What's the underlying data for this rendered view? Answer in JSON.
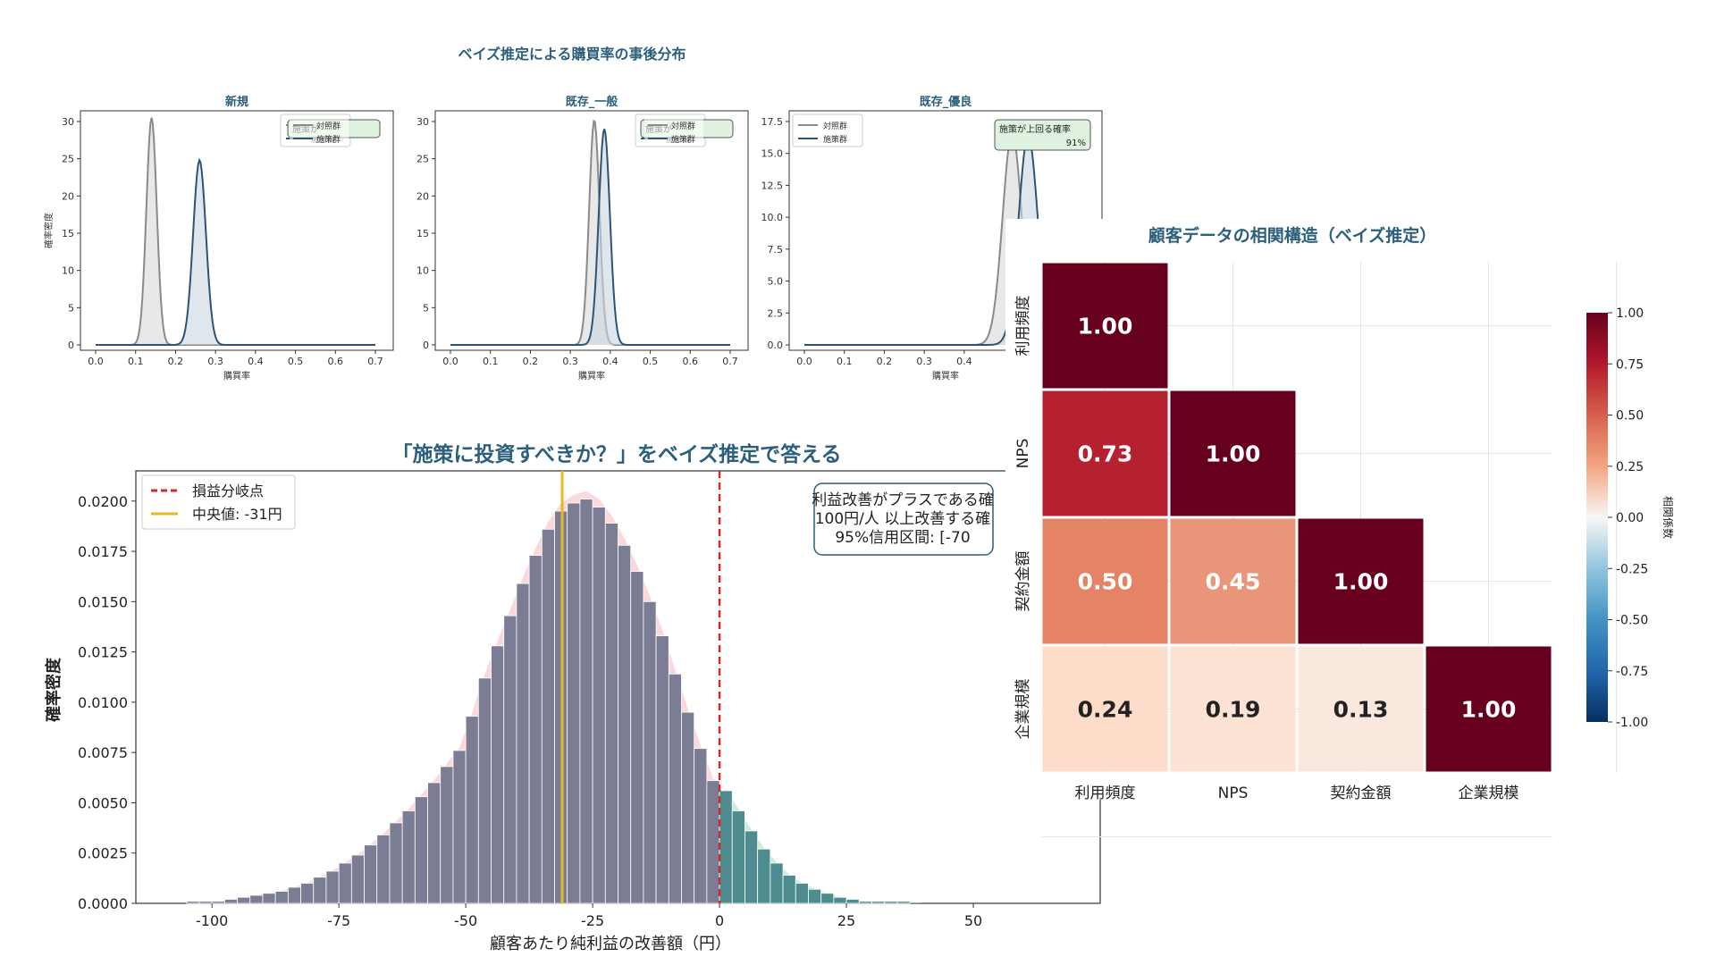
{
  "posterior_figure": {
    "suptitle": "ベイズ推定による購買率の事後分布",
    "panels": [
      {
        "title": "新規",
        "xlabel": "購買率",
        "ylabel": "確率密度",
        "legend": [
          "対照群",
          "施策群"
        ],
        "prob_box": "施策が"
      },
      {
        "title": "既存_一般",
        "xlabel": "購買率",
        "ylabel": "",
        "legend": [
          "対照群",
          "施策群"
        ],
        "prob_box": "施策が"
      },
      {
        "title": "既存_優良",
        "xlabel": "購買率",
        "ylabel": "",
        "legend": [
          "対照群",
          "施策群"
        ],
        "prob_box": "施策が上回る確率\n91%"
      }
    ]
  },
  "histogram_figure": {
    "title": "「施策に投資すべきか？」をベイズ推定で答える",
    "xlabel": "顧客あたり純利益の改善額（円）",
    "ylabel": "確率密度",
    "legend": [
      "損益分岐点",
      "中央値: -31円"
    ],
    "annotation": [
      "利益改善がプラスである確",
      "100円/人 以上改善する確",
      "95%信用区間: [-70"
    ]
  },
  "heatmap_figure": {
    "title": "顧客データの相関構造（ベイズ推定）",
    "colorbar_label": "相関係数",
    "colorbar_ticks": [
      "1.00",
      "0.75",
      "0.50",
      "0.25",
      "0.00",
      "-0.25",
      "-0.50",
      "-0.75",
      "-1.00"
    ]
  },
  "colors": {
    "control": "#8a8a8a",
    "treatment": "#2e5475",
    "title_blue": "#2c5f7c",
    "breakeven": "#d62728",
    "median": "#e8b822",
    "hist_neg": "#7b7d94",
    "hist_pos": "#4f8c90",
    "prob_box_fill": "#dff2df"
  },
  "chart_data": [
    {
      "type": "line",
      "name": "新規",
      "xlim": [
        0,
        0.7
      ],
      "ylim": [
        0,
        30
      ],
      "xticks": [
        "0.0",
        "0.1",
        "0.2",
        "0.3",
        "0.4",
        "0.5",
        "0.6",
        "0.7"
      ],
      "yticks": [
        "0",
        "5",
        "10",
        "15",
        "20",
        "25",
        "30"
      ],
      "series": [
        {
          "name": "対照群",
          "mean": 0.14,
          "sd": 0.013,
          "peak": 30.5
        },
        {
          "name": "施策群",
          "mean": 0.26,
          "sd": 0.016,
          "peak": 24.8
        }
      ]
    },
    {
      "type": "line",
      "name": "既存_一般",
      "xlim": [
        0,
        0.7
      ],
      "ylim": [
        0,
        30
      ],
      "xticks": [
        "0.0",
        "0.1",
        "0.2",
        "0.3",
        "0.4",
        "0.5",
        "0.6",
        "0.7"
      ],
      "yticks": [
        "0",
        "5",
        "10",
        "15",
        "20",
        "25",
        "30"
      ],
      "series": [
        {
          "name": "対照群",
          "mean": 0.36,
          "sd": 0.013,
          "peak": 30.2
        },
        {
          "name": "施策群",
          "mean": 0.385,
          "sd": 0.014,
          "peak": 29.0
        }
      ]
    },
    {
      "type": "line",
      "name": "既存_優良",
      "xlim": [
        0,
        0.7
      ],
      "ylim": [
        0,
        17.5
      ],
      "xticks": [
        "0.0",
        "0.1",
        "0.2",
        "0.3",
        "0.4"
      ],
      "yticks": [
        "0.0",
        "2.5",
        "5.0",
        "7.5",
        "10.0",
        "12.5",
        "15.0",
        "17.5"
      ],
      "series": [
        {
          "name": "対照群",
          "mean": 0.52,
          "sd": 0.024,
          "peak": 16.6
        },
        {
          "name": "施策群",
          "mean": 0.56,
          "sd": 0.024,
          "peak": 16.4
        }
      ]
    },
    {
      "type": "bar",
      "name": "顧客あたり純利益の改善額",
      "xlim": [
        -115,
        75
      ],
      "ylim": [
        0,
        0.0215
      ],
      "xticks": [
        "-100",
        "-75",
        "-50",
        "-25",
        "0",
        "25",
        "50"
      ],
      "yticks": [
        "0.0000",
        "0.0025",
        "0.0050",
        "0.0075",
        "0.0100",
        "0.0125",
        "0.0150",
        "0.0175",
        "0.0200"
      ],
      "bin_width": 2.5,
      "bin_starts": [
        -105,
        -102.5,
        -100,
        -97.5,
        -95,
        -92.5,
        -90,
        -87.5,
        -85,
        -82.5,
        -80,
        -77.5,
        -75,
        -72.5,
        -70,
        -67.5,
        -65,
        -62.5,
        -60,
        -57.5,
        -55,
        -52.5,
        -50,
        -47.5,
        -45,
        -42.5,
        -40,
        -37.5,
        -35,
        -32.5,
        -30,
        -27.5,
        -25,
        -22.5,
        -20,
        -17.5,
        -15,
        -12.5,
        -10,
        -7.5,
        -5,
        -2.5,
        0,
        2.5,
        5,
        7.5,
        10,
        12.5,
        15,
        17.5,
        20,
        22.5,
        25,
        27.5,
        30,
        32.5,
        35
      ],
      "values": [
        0.0001,
        0.0001,
        0.0001,
        0.0002,
        0.0003,
        0.0004,
        0.0005,
        0.0006,
        0.0008,
        0.001,
        0.0013,
        0.0016,
        0.002,
        0.0024,
        0.0029,
        0.0034,
        0.004,
        0.0046,
        0.0053,
        0.006,
        0.0068,
        0.0076,
        0.0093,
        0.0112,
        0.0128,
        0.0143,
        0.0159,
        0.0173,
        0.0186,
        0.0195,
        0.0199,
        0.0201,
        0.0197,
        0.0189,
        0.0178,
        0.0165,
        0.015,
        0.0133,
        0.0114,
        0.0095,
        0.0077,
        0.0061,
        0.0056,
        0.0046,
        0.0036,
        0.0027,
        0.002,
        0.0014,
        0.001,
        0.0007,
        0.0005,
        0.0003,
        0.0002,
        0.0001,
        0.0001,
        0.0001,
        0.0001
      ],
      "breakeven": 0,
      "median": -31
    },
    {
      "type": "heatmap",
      "name": "顧客データの相関構造",
      "labels": [
        "利用頻度",
        "NPS",
        "契約金額",
        "企業規模"
      ],
      "matrix": [
        [
          1.0,
          null,
          null,
          null
        ],
        [
          0.73,
          1.0,
          null,
          null
        ],
        [
          0.5,
          0.45,
          1.0,
          null
        ],
        [
          0.24,
          0.19,
          0.13,
          1.0
        ]
      ],
      "vmin": -1,
      "vmax": 1,
      "colormap": "RdBu_r"
    }
  ]
}
